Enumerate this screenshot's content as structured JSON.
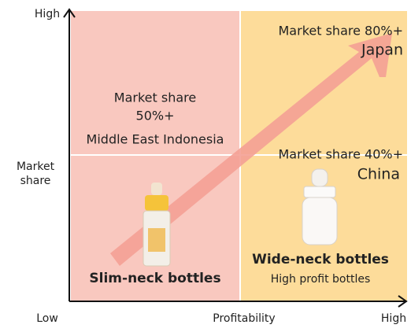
{
  "axes": {
    "y_high": "High",
    "y_label": [
      "Market",
      "share"
    ],
    "x_low": "Low",
    "x_label": "Profitability",
    "x_high": "High"
  },
  "quadrants": {
    "top_left": {
      "share": "Market share",
      "share_value": "50%+",
      "regions": "Middle East  Indonesia"
    },
    "top_right": {
      "share": "Market share 80%+",
      "region": "Japan"
    },
    "bottom_right": {
      "share": "Market share 40%+",
      "region": "China",
      "product": "Wide-neck bottles",
      "note": "High profit bottles"
    },
    "bottom_left": {
      "product": "Slim-neck bottles"
    }
  }
}
